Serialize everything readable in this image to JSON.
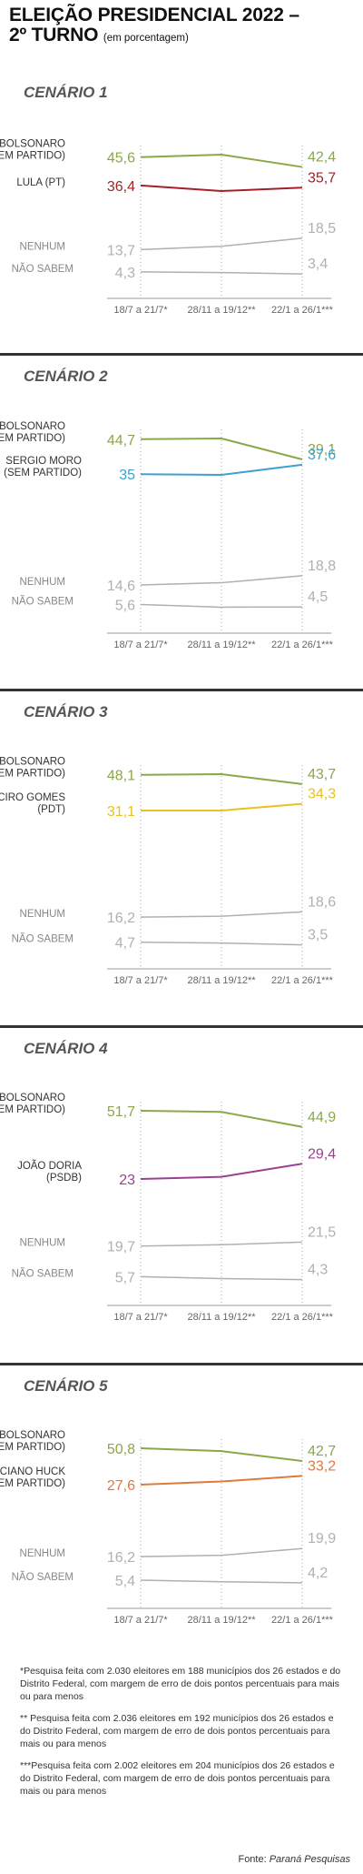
{
  "header": {
    "title_line1": "ELEIÇÃO PRESIDENCIAL 2022 –",
    "title_line2": "2º TURNO",
    "subtitle": "(em porcentagem)"
  },
  "chart_data": [
    {
      "type": "line",
      "scenario": "CENÁRIO 1",
      "categories": [
        "18/7 a 21/7*",
        "28/11 a 19/12**",
        "22/1 a 26/1***"
      ],
      "series": [
        {
          "name": "BOLSONARO (SEM PARTIDO)",
          "label_lines": [
            "BOLSONARO",
            "(SEM PARTIDO)"
          ],
          "values": [
            45.6,
            46.4,
            42.4
          ],
          "start_label": "45,6",
          "end_label": "42,4",
          "color": "#8aa84a"
        },
        {
          "name": "LULA (PT)",
          "label_lines": [
            "LULA (PT)"
          ],
          "values": [
            36.4,
            34.6,
            35.7
          ],
          "start_label": "36,4",
          "end_label": "35,7",
          "color": "#a4202a"
        },
        {
          "name": "NENHUM",
          "label_lines": [
            "NENHUM"
          ],
          "values": [
            13.7,
            15.1,
            18.5
          ],
          "start_label": "13,7",
          "end_label": "18,5",
          "color": "#b0b0b0"
        },
        {
          "name": "NÃO SABEM",
          "label_lines": [
            "NÃO SABEM"
          ],
          "values": [
            4.3,
            4.0,
            3.4
          ],
          "start_label": "4,3",
          "end_label": "3,4",
          "color": "#b0b0b0"
        }
      ]
    },
    {
      "type": "line",
      "scenario": "CENÁRIO 2",
      "categories": [
        "18/7 a 21/7*",
        "28/11 a 19/12**",
        "22/1 a 26/1***"
      ],
      "series": [
        {
          "name": "BOLSONARO (SEM PARTIDO)",
          "label_lines": [
            "BOLSONARO",
            "(SEM PARTIDO)"
          ],
          "values": [
            44.7,
            44.9,
            39.1
          ],
          "start_label": "44,7",
          "end_label": "39,1",
          "color": "#8aa84a"
        },
        {
          "name": "SERGIO MORO (SEM PARTIDO)",
          "label_lines": [
            "SERGIO MORO",
            "(SEM PARTIDO)"
          ],
          "values": [
            35,
            34.8,
            37.6
          ],
          "start_label": "35",
          "end_label": "37,6",
          "color": "#3f9fcf"
        },
        {
          "name": "NENHUM",
          "label_lines": [
            "NENHUM"
          ],
          "values": [
            14.6,
            15.6,
            18.8
          ],
          "start_label": "14,6",
          "end_label": "18,8",
          "color": "#b0b0b0"
        },
        {
          "name": "NÃO SABEM",
          "label_lines": [
            "NÃO SABEM"
          ],
          "values": [
            5.6,
            4.4,
            4.5
          ],
          "start_label": "5,6",
          "end_label": "4,5",
          "color": "#b0b0b0"
        }
      ]
    },
    {
      "type": "line",
      "scenario": "CENÁRIO 3",
      "categories": [
        "18/7 a 21/7*",
        "28/11 a 19/12**",
        "22/1 a 26/1***"
      ],
      "series": [
        {
          "name": "BOLSONARO (SEM PARTIDO)",
          "label_lines": [
            "BOLSONARO",
            "(SEM PARTIDO)"
          ],
          "values": [
            48.1,
            48.4,
            43.7
          ],
          "start_label": "48,1",
          "end_label": "43,7",
          "color": "#8aa84a"
        },
        {
          "name": "CIRO GOMES (PDT)",
          "label_lines": [
            "CIRO GOMES",
            "(PDT)"
          ],
          "values": [
            31.1,
            31.1,
            34.3
          ],
          "start_label": "31,1",
          "end_label": "34,3",
          "color": "#e8c21e"
        },
        {
          "name": "NENHUM",
          "label_lines": [
            "NENHUM"
          ],
          "values": [
            16.2,
            16.6,
            18.6
          ],
          "start_label": "16,2",
          "end_label": "18,6",
          "color": "#b0b0b0"
        },
        {
          "name": "NÃO SABEM",
          "label_lines": [
            "NÃO SABEM"
          ],
          "values": [
            4.7,
            4.3,
            3.5
          ],
          "start_label": "4,7",
          "end_label": "3,5",
          "color": "#b0b0b0"
        }
      ]
    },
    {
      "type": "line",
      "scenario": "CENÁRIO 4",
      "categories": [
        "18/7 a 21/7*",
        "28/11 a 19/12**",
        "22/1 a 26/1***"
      ],
      "series": [
        {
          "name": "BOLSONARO (SEM PARTIDO)",
          "label_lines": [
            "BOLSONARO",
            "(SEM PARTIDO)"
          ],
          "values": [
            51.7,
            51.2,
            44.9
          ],
          "start_label": "51,7",
          "end_label": "44,9",
          "color": "#8aa84a"
        },
        {
          "name": "JOÃO DORIA (PSDB)",
          "label_lines": [
            "JOÃO DORIA",
            "(PSDB)"
          ],
          "values": [
            23,
            23.9,
            29.4
          ],
          "start_label": "23",
          "end_label": "29,4",
          "color": "#9b3f90"
        },
        {
          "name": "NENHUM",
          "label_lines": [
            "NENHUM"
          ],
          "values": [
            19.7,
            20.3,
            21.5
          ],
          "start_label": "19,7",
          "end_label": "21,5",
          "color": "#b0b0b0"
        },
        {
          "name": "NÃO SABEM",
          "label_lines": [
            "NÃO SABEM"
          ],
          "values": [
            5.7,
            4.8,
            4.3
          ],
          "start_label": "5,7",
          "end_label": "4,3",
          "color": "#b0b0b0"
        }
      ]
    },
    {
      "type": "line",
      "scenario": "CENÁRIO 5",
      "categories": [
        "18/7 a 21/7*",
        "28/11 a 19/12**",
        "22/1 a 26/1***"
      ],
      "series": [
        {
          "name": "BOLSONARO (SEM PARTIDO)",
          "label_lines": [
            "BOLSONARO",
            "(SEM PARTIDO)"
          ],
          "values": [
            50.8,
            49.0,
            42.7
          ],
          "start_label": "50,8",
          "end_label": "42,7",
          "color": "#8aa84a"
        },
        {
          "name": "LUCIANO HUCK (SEM PARTIDO)",
          "label_lines": [
            "LUCIANO HUCK",
            "(SEM PARTIDO)"
          ],
          "values": [
            27.6,
            29.6,
            33.2
          ],
          "start_label": "27,6",
          "end_label": "33,2",
          "color": "#e07a3a"
        },
        {
          "name": "NENHUM",
          "label_lines": [
            "NENHUM"
          ],
          "values": [
            16.2,
            16.8,
            19.9
          ],
          "start_label": "16,2",
          "end_label": "19,9",
          "color": "#b0b0b0"
        },
        {
          "name": "NÃO SABEM",
          "label_lines": [
            "NÃO SABEM"
          ],
          "values": [
            5.4,
            4.7,
            4.2
          ],
          "start_label": "5,4",
          "end_label": "4,2",
          "color": "#b0b0b0"
        }
      ]
    }
  ],
  "footnotes": [
    "*Pesquisa feita com 2.030 eleitores em 188 municípios dos 26 estados e do Distrito Federal, com margem de erro de dois pontos percentuais para mais ou para menos",
    "** Pesquisa feita com 2.036 eleitores em 192 municípios dos 26 estados e do Distrito Federal, com margem de erro de dois pontos percentuais para mais ou para menos",
    "***Pesquisa feita com 2.002 eleitores em 204 municípios dos 26 estados e do Distrito Federal, com margem de erro de dois pontos percentuais para mais ou para menos"
  ],
  "source": {
    "prefix": "Fonte:",
    "name": "Paraná Pesquisas"
  }
}
